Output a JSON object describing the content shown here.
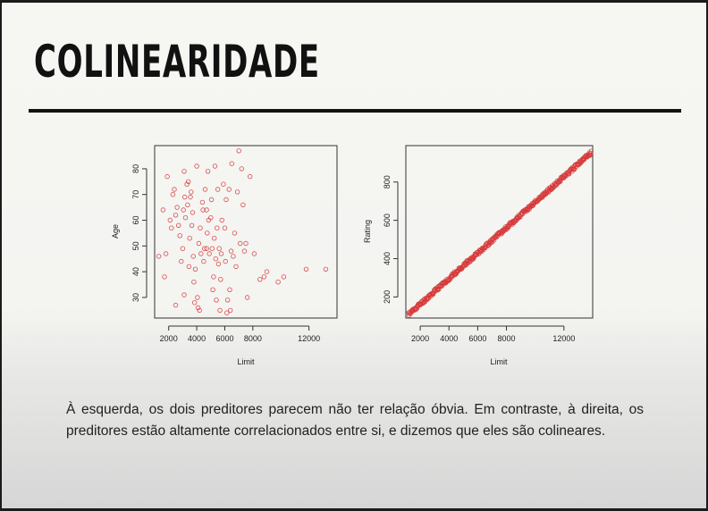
{
  "slide": {
    "title": "COLINEARIDADE",
    "caption": "À esquerda, os dois preditores parecem não ter relação óbvia. Em contraste, à direita, os preditores estão altamente correlacionados entre si, e dizemos que eles são colineares."
  },
  "colors": {
    "background": "#f4f4f1",
    "title": "#111111",
    "point": "#d63838"
  },
  "chart_data": [
    {
      "type": "scatter",
      "title": "",
      "xlabel": "Limit",
      "ylabel": "Age",
      "xlim": [
        1000,
        14000
      ],
      "ylim": [
        22,
        89
      ],
      "xticks": [
        2000,
        4000,
        6000,
        8000,
        12000
      ],
      "yticks": [
        30,
        40,
        50,
        60,
        70,
        80
      ],
      "grid": false,
      "marker": "open-circle",
      "points": [
        [
          1300,
          46
        ],
        [
          1600,
          64
        ],
        [
          1700,
          38
        ],
        [
          1800,
          47
        ],
        [
          1900,
          77
        ],
        [
          2100,
          60
        ],
        [
          2200,
          57
        ],
        [
          2300,
          70
        ],
        [
          2400,
          72
        ],
        [
          2500,
          62
        ],
        [
          2600,
          65
        ],
        [
          2700,
          58
        ],
        [
          2800,
          54
        ],
        [
          2900,
          44
        ],
        [
          3000,
          49
        ],
        [
          3050,
          64
        ],
        [
          3100,
          79
        ],
        [
          3150,
          69
        ],
        [
          3200,
          61
        ],
        [
          3300,
          74
        ],
        [
          3350,
          66
        ],
        [
          3400,
          75
        ],
        [
          3450,
          42
        ],
        [
          3500,
          53
        ],
        [
          3550,
          69
        ],
        [
          3600,
          71
        ],
        [
          3650,
          58
        ],
        [
          3700,
          63
        ],
        [
          3750,
          46
        ],
        [
          3800,
          36
        ],
        [
          3850,
          28
        ],
        [
          3900,
          41
        ],
        [
          4000,
          81
        ],
        [
          4050,
          30
        ],
        [
          4100,
          26
        ],
        [
          4150,
          51
        ],
        [
          4200,
          25
        ],
        [
          4250,
          57
        ],
        [
          4300,
          47
        ],
        [
          4400,
          67
        ],
        [
          4450,
          64
        ],
        [
          4500,
          44
        ],
        [
          4550,
          49
        ],
        [
          4600,
          72
        ],
        [
          4700,
          64
        ],
        [
          4750,
          55
        ],
        [
          4800,
          79
        ],
        [
          4850,
          60
        ],
        [
          4900,
          47
        ],
        [
          5000,
          61
        ],
        [
          5050,
          68
        ],
        [
          5100,
          49
        ],
        [
          5150,
          33
        ],
        [
          5200,
          38
        ],
        [
          5250,
          53
        ],
        [
          5300,
          81
        ],
        [
          5350,
          45
        ],
        [
          5400,
          29
        ],
        [
          5450,
          57
        ],
        [
          5500,
          72
        ],
        [
          5550,
          43
        ],
        [
          5600,
          49
        ],
        [
          5650,
          25
        ],
        [
          5700,
          37
        ],
        [
          5750,
          47
        ],
        [
          5800,
          60
        ],
        [
          5900,
          74
        ],
        [
          6000,
          57
        ],
        [
          6050,
          44
        ],
        [
          6100,
          68
        ],
        [
          6150,
          24
        ],
        [
          6200,
          29
        ],
        [
          6300,
          72
        ],
        [
          6350,
          33
        ],
        [
          6400,
          25
        ],
        [
          6450,
          48
        ],
        [
          6500,
          82
        ],
        [
          6600,
          46
        ],
        [
          6700,
          55
        ],
        [
          6800,
          42
        ],
        [
          6900,
          71
        ],
        [
          7000,
          87
        ],
        [
          7100,
          51
        ],
        [
          7200,
          80
        ],
        [
          7300,
          66
        ],
        [
          7400,
          48
        ],
        [
          7500,
          51
        ],
        [
          7600,
          30
        ],
        [
          7800,
          77
        ],
        [
          8100,
          47
        ],
        [
          8500,
          37
        ],
        [
          8800,
          38
        ],
        [
          9000,
          40
        ],
        [
          9800,
          36
        ],
        [
          10200,
          38
        ],
        [
          11800,
          41
        ],
        [
          13200,
          41
        ],
        [
          2500,
          27
        ],
        [
          3100,
          31
        ],
        [
          4700,
          49
        ]
      ]
    },
    {
      "type": "scatter",
      "title": "",
      "xlabel": "Limit",
      "ylabel": "Rating",
      "xlim": [
        1000,
        14000
      ],
      "ylim": [
        90,
        990
      ],
      "xticks": [
        2000,
        4000,
        6000,
        8000,
        12000
      ],
      "yticks": [
        200,
        400,
        600,
        800
      ],
      "grid": false,
      "marker": "open-circle",
      "trend": {
        "slope": 0.0665,
        "intercept": 30,
        "x_from": 1200,
        "x_to": 13900
      }
    }
  ],
  "axis_text": {
    "left": {
      "xlabel": "Limit",
      "ylabel": "Age",
      "xticks": [
        "2000",
        "4000",
        "6000",
        "8000",
        "12000"
      ],
      "yticks": [
        "30",
        "40",
        "50",
        "60",
        "70",
        "80"
      ]
    },
    "right": {
      "xlabel": "Limit",
      "ylabel": "Rating",
      "xticks": [
        "2000",
        "4000",
        "6000",
        "8000",
        "12000"
      ],
      "yticks": [
        "200",
        "400",
        "600",
        "800"
      ]
    }
  }
}
